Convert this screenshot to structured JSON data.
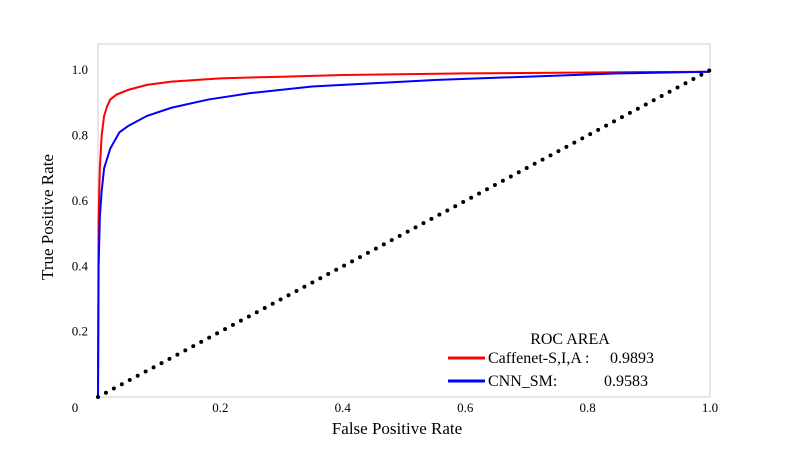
{
  "chart_data": {
    "type": "line",
    "xlabel": "False Positive Rate",
    "ylabel": "True Positive Rate",
    "xlim": [
      0,
      1.0
    ],
    "ylim": [
      0,
      1.08
    ],
    "x_ticks": [
      "0",
      "0.2",
      "0.4",
      "0.6",
      "0.8",
      "1.0"
    ],
    "y_ticks": [
      "0.2",
      "0.4",
      "0.6",
      "0.8",
      "1.0"
    ],
    "grid": false,
    "legend": {
      "title": "ROC AREA",
      "placement": "bottom-right",
      "entries": [
        {
          "label": "Caffenet-S,I,A :",
          "value": "0.9893",
          "color": "#ff0000"
        },
        {
          "label": "CNN_SM:",
          "value": "0.9583",
          "color": "#0000ff"
        }
      ]
    },
    "series": [
      {
        "color": "#ff0000",
        "points": [
          [
            0,
            0
          ],
          [
            0.001,
            0.55
          ],
          [
            0.003,
            0.7
          ],
          [
            0.006,
            0.8
          ],
          [
            0.01,
            0.86
          ],
          [
            0.015,
            0.89
          ],
          [
            0.02,
            0.91
          ],
          [
            0.03,
            0.925
          ],
          [
            0.05,
            0.94
          ],
          [
            0.08,
            0.955
          ],
          [
            0.12,
            0.965
          ],
          [
            0.2,
            0.975
          ],
          [
            0.3,
            0.98
          ],
          [
            0.4,
            0.985
          ],
          [
            0.6,
            0.99
          ],
          [
            0.8,
            0.993
          ],
          [
            1.0,
            0.995
          ]
        ]
      },
      {
        "color": "#0000ff",
        "points": [
          [
            0,
            0
          ],
          [
            0.001,
            0.4
          ],
          [
            0.003,
            0.55
          ],
          [
            0.006,
            0.63
          ],
          [
            0.01,
            0.7
          ],
          [
            0.02,
            0.76
          ],
          [
            0.035,
            0.81
          ],
          [
            0.05,
            0.83
          ],
          [
            0.08,
            0.86
          ],
          [
            0.12,
            0.885
          ],
          [
            0.18,
            0.91
          ],
          [
            0.25,
            0.93
          ],
          [
            0.35,
            0.95
          ],
          [
            0.45,
            0.96
          ],
          [
            0.55,
            0.97
          ],
          [
            0.7,
            0.98
          ],
          [
            0.85,
            0.99
          ],
          [
            1.0,
            0.995
          ]
        ]
      },
      {
        "color": "#000000",
        "style": "dotted",
        "points": [
          [
            0,
            0
          ],
          [
            1.0,
            1.0
          ]
        ]
      }
    ]
  }
}
